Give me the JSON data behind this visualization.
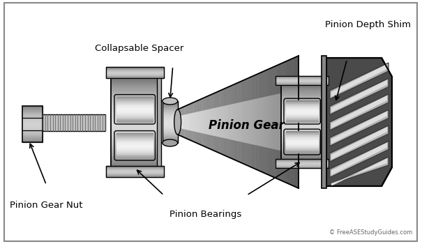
{
  "bg_color": "#ffffff",
  "labels": {
    "pinion_depth_shim": "Pinion Depth Shim",
    "collapsable_spacer": "Collapsable Spacer",
    "pinion_gear_nut": "Pinion Gear Nut",
    "pinion_bearings": "Pinion Bearings",
    "pinion_gear": "Pinion Gear"
  },
  "copyright": "© FreeASEStudyGuides.com",
  "figsize": [
    6.05,
    3.5
  ],
  "dpi": 100
}
